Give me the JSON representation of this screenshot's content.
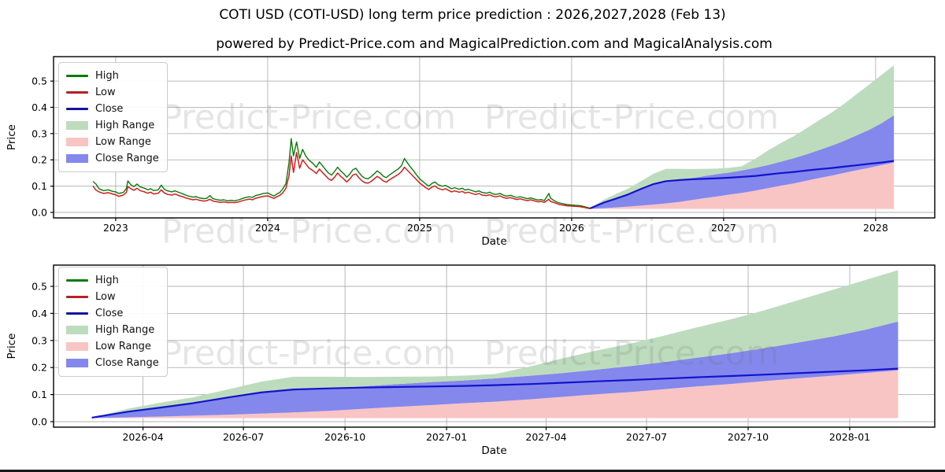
{
  "title": "COTI USD (COTI-USD) long term price prediction : 2026,2027,2028 (Feb 13)",
  "subtitle": "powered by Predict-Price.com and MagicalPrediction.com and MagicalAnalysis.com",
  "watermark_text": "Predict-Price.com",
  "axis_labels": {
    "x": "Date",
    "y": "Price"
  },
  "colors": {
    "high_line": "#0a7a0a",
    "low_line": "#cf2020",
    "close_line": "#1313cd",
    "high_fill": "#bddcbd",
    "low_fill": "#f9c4c4",
    "close_fill": "#8488ec",
    "grid": "#b0b0b0",
    "spine": "#000000",
    "watermark": "rgba(110,110,110,0.18)"
  },
  "legend": {
    "items": [
      {
        "label": "High",
        "swatch": "line",
        "color": "#0a7a0a"
      },
      {
        "label": "Low",
        "swatch": "line",
        "color": "#b42222"
      },
      {
        "label": "Close",
        "swatch": "line",
        "color": "#14149b"
      },
      {
        "label": "High Range",
        "swatch": "fill",
        "color": "#bddcbd"
      },
      {
        "label": "Low Range",
        "swatch": "fill",
        "color": "#f9c4c4"
      },
      {
        "label": "Close Range",
        "swatch": "fill",
        "color": "#8488ec"
      }
    ]
  },
  "chart_data": [
    {
      "type": "line+area",
      "panel": "top",
      "title": "COTI-USD history 2022-2026 with prediction to 2028",
      "xlabel": "Date",
      "ylabel": "Price",
      "xlim": [
        2022.591,
        2028.389
      ],
      "ylim": [
        -0.021,
        0.593
      ],
      "x_ticks": [
        {
          "v": 2023,
          "label": "2023"
        },
        {
          "v": 2024,
          "label": "2024"
        },
        {
          "v": 2025,
          "label": "2025"
        },
        {
          "v": 2026,
          "label": "2026"
        },
        {
          "v": 2027,
          "label": "2027"
        },
        {
          "v": 2028,
          "label": "2028"
        }
      ],
      "y_ticks": [
        {
          "v": 0.0,
          "label": "0.0"
        },
        {
          "v": 0.1,
          "label": "0.1"
        },
        {
          "v": 0.2,
          "label": "0.2"
        },
        {
          "v": 0.3,
          "label": "0.3"
        },
        {
          "v": 0.4,
          "label": "0.4"
        },
        {
          "v": 0.5,
          "label": "0.5"
        }
      ],
      "series": [
        "history",
        "prediction"
      ]
    },
    {
      "type": "area",
      "panel": "bottom",
      "title": "COTI-USD prediction detail 2026-02 to 2028-02",
      "xlabel": "Date",
      "ylabel": "Price",
      "xlim": [
        2026.025,
        2028.211
      ],
      "ylim": [
        -0.0203,
        0.5785
      ],
      "x_ticks": [
        {
          "v": 2026.247,
          "label": "2026-04"
        },
        {
          "v": 2026.496,
          "label": "2026-07"
        },
        {
          "v": 2026.748,
          "label": "2026-10"
        },
        {
          "v": 2027.0,
          "label": "2027-01"
        },
        {
          "v": 2027.247,
          "label": "2027-04"
        },
        {
          "v": 2027.496,
          "label": "2027-07"
        },
        {
          "v": 2027.748,
          "label": "2027-10"
        },
        {
          "v": 2028.0,
          "label": "2028-01"
        }
      ],
      "y_ticks": [
        {
          "v": 0.0,
          "label": "0.0"
        },
        {
          "v": 0.1,
          "label": "0.1"
        },
        {
          "v": 0.2,
          "label": "0.2"
        },
        {
          "v": 0.3,
          "label": "0.3"
        },
        {
          "v": 0.4,
          "label": "0.4"
        },
        {
          "v": 0.5,
          "label": "0.5"
        }
      ],
      "series": [
        "prediction"
      ]
    }
  ],
  "series": {
    "history": {
      "columns": [
        "t",
        "high",
        "low"
      ],
      "points": [
        [
          2022.85,
          0.118,
          0.1
        ],
        [
          2022.87,
          0.108,
          0.085
        ],
        [
          2022.89,
          0.09,
          0.078
        ],
        [
          2022.92,
          0.083,
          0.072
        ],
        [
          2022.95,
          0.086,
          0.075
        ],
        [
          2022.98,
          0.08,
          0.07
        ],
        [
          2023.0,
          0.078,
          0.067
        ],
        [
          2023.02,
          0.072,
          0.061
        ],
        [
          2023.05,
          0.076,
          0.066
        ],
        [
          2023.07,
          0.09,
          0.076
        ],
        [
          2023.08,
          0.12,
          0.098
        ],
        [
          2023.1,
          0.105,
          0.09
        ],
        [
          2023.12,
          0.098,
          0.084
        ],
        [
          2023.14,
          0.108,
          0.092
        ],
        [
          2023.16,
          0.097,
          0.083
        ],
        [
          2023.19,
          0.092,
          0.078
        ],
        [
          2023.21,
          0.086,
          0.073
        ],
        [
          2023.23,
          0.09,
          0.077
        ],
        [
          2023.25,
          0.083,
          0.07
        ],
        [
          2023.28,
          0.086,
          0.073
        ],
        [
          2023.3,
          0.104,
          0.086
        ],
        [
          2023.32,
          0.088,
          0.074
        ],
        [
          2023.34,
          0.082,
          0.069
        ],
        [
          2023.37,
          0.078,
          0.066
        ],
        [
          2023.39,
          0.082,
          0.07
        ],
        [
          2023.42,
          0.075,
          0.063
        ],
        [
          2023.44,
          0.071,
          0.06
        ],
        [
          2023.46,
          0.066,
          0.055
        ],
        [
          2023.48,
          0.062,
          0.052
        ],
        [
          2023.51,
          0.058,
          0.048
        ],
        [
          2023.53,
          0.06,
          0.05
        ],
        [
          2023.55,
          0.055,
          0.046
        ],
        [
          2023.58,
          0.052,
          0.043
        ],
        [
          2023.6,
          0.054,
          0.045
        ],
        [
          2023.62,
          0.064,
          0.05
        ],
        [
          2023.64,
          0.052,
          0.043
        ],
        [
          2023.67,
          0.048,
          0.04
        ],
        [
          2023.69,
          0.046,
          0.038
        ],
        [
          2023.71,
          0.048,
          0.04
        ],
        [
          2023.74,
          0.044,
          0.037
        ],
        [
          2023.76,
          0.046,
          0.038
        ],
        [
          2023.78,
          0.044,
          0.037
        ],
        [
          2023.81,
          0.048,
          0.04
        ],
        [
          2023.83,
          0.052,
          0.044
        ],
        [
          2023.85,
          0.056,
          0.047
        ],
        [
          2023.88,
          0.06,
          0.051
        ],
        [
          2023.9,
          0.057,
          0.048
        ],
        [
          2023.92,
          0.064,
          0.054
        ],
        [
          2023.95,
          0.068,
          0.058
        ],
        [
          2023.97,
          0.072,
          0.061
        ],
        [
          2024.0,
          0.074,
          0.063
        ],
        [
          2024.02,
          0.068,
          0.058
        ],
        [
          2024.04,
          0.062,
          0.053
        ],
        [
          2024.06,
          0.07,
          0.06
        ],
        [
          2024.08,
          0.076,
          0.065
        ],
        [
          2024.1,
          0.09,
          0.075
        ],
        [
          2024.12,
          0.11,
          0.092
        ],
        [
          2024.14,
          0.19,
          0.14
        ],
        [
          2024.155,
          0.281,
          0.215
        ],
        [
          2024.17,
          0.215,
          0.152
        ],
        [
          2024.19,
          0.268,
          0.228
        ],
        [
          2024.21,
          0.205,
          0.168
        ],
        [
          2024.23,
          0.24,
          0.2
        ],
        [
          2024.25,
          0.215,
          0.185
        ],
        [
          2024.27,
          0.2,
          0.17
        ],
        [
          2024.3,
          0.185,
          0.158
        ],
        [
          2024.32,
          0.172,
          0.148
        ],
        [
          2024.34,
          0.192,
          0.165
        ],
        [
          2024.36,
          0.178,
          0.152
        ],
        [
          2024.38,
          0.163,
          0.14
        ],
        [
          2024.4,
          0.15,
          0.128
        ],
        [
          2024.42,
          0.142,
          0.122
        ],
        [
          2024.44,
          0.156,
          0.134
        ],
        [
          2024.46,
          0.172,
          0.15
        ],
        [
          2024.48,
          0.158,
          0.137
        ],
        [
          2024.5,
          0.148,
          0.128
        ],
        [
          2024.52,
          0.134,
          0.116
        ],
        [
          2024.54,
          0.146,
          0.127
        ],
        [
          2024.56,
          0.162,
          0.142
        ],
        [
          2024.58,
          0.168,
          0.146
        ],
        [
          2024.6,
          0.152,
          0.132
        ],
        [
          2024.62,
          0.138,
          0.12
        ],
        [
          2024.64,
          0.13,
          0.113
        ],
        [
          2024.66,
          0.128,
          0.111
        ],
        [
          2024.68,
          0.136,
          0.118
        ],
        [
          2024.7,
          0.146,
          0.127
        ],
        [
          2024.72,
          0.158,
          0.137
        ],
        [
          2024.74,
          0.15,
          0.13
        ],
        [
          2024.76,
          0.138,
          0.12
        ],
        [
          2024.78,
          0.132,
          0.115
        ],
        [
          2024.8,
          0.142,
          0.124
        ],
        [
          2024.82,
          0.15,
          0.131
        ],
        [
          2024.84,
          0.158,
          0.138
        ],
        [
          2024.86,
          0.166,
          0.145
        ],
        [
          2024.88,
          0.178,
          0.155
        ],
        [
          2024.9,
          0.205,
          0.172
        ],
        [
          2024.92,
          0.188,
          0.16
        ],
        [
          2024.94,
          0.172,
          0.148
        ],
        [
          2024.96,
          0.158,
          0.136
        ],
        [
          2024.98,
          0.142,
          0.124
        ],
        [
          2025.0,
          0.128,
          0.112
        ],
        [
          2025.02,
          0.118,
          0.103
        ],
        [
          2025.04,
          0.108,
          0.094
        ],
        [
          2025.06,
          0.1,
          0.087
        ],
        [
          2025.08,
          0.11,
          0.096
        ],
        [
          2025.1,
          0.116,
          0.101
        ],
        [
          2025.12,
          0.106,
          0.092
        ],
        [
          2025.15,
          0.099,
          0.086
        ],
        [
          2025.17,
          0.103,
          0.09
        ],
        [
          2025.19,
          0.096,
          0.084
        ],
        [
          2025.21,
          0.09,
          0.078
        ],
        [
          2025.23,
          0.094,
          0.082
        ],
        [
          2025.26,
          0.088,
          0.077
        ],
        [
          2025.28,
          0.092,
          0.08
        ],
        [
          2025.3,
          0.085,
          0.074
        ],
        [
          2025.32,
          0.088,
          0.077
        ],
        [
          2025.35,
          0.082,
          0.071
        ],
        [
          2025.37,
          0.078,
          0.068
        ],
        [
          2025.39,
          0.082,
          0.072
        ],
        [
          2025.41,
          0.076,
          0.066
        ],
        [
          2025.44,
          0.073,
          0.064
        ],
        [
          2025.46,
          0.077,
          0.067
        ],
        [
          2025.48,
          0.071,
          0.062
        ],
        [
          2025.5,
          0.068,
          0.059
        ],
        [
          2025.53,
          0.072,
          0.063
        ],
        [
          2025.55,
          0.066,
          0.057
        ],
        [
          2025.57,
          0.062,
          0.054
        ],
        [
          2025.6,
          0.065,
          0.056
        ],
        [
          2025.62,
          0.06,
          0.052
        ],
        [
          2025.64,
          0.057,
          0.049
        ],
        [
          2025.66,
          0.06,
          0.052
        ],
        [
          2025.69,
          0.055,
          0.047
        ],
        [
          2025.71,
          0.052,
          0.045
        ],
        [
          2025.73,
          0.055,
          0.048
        ],
        [
          2025.76,
          0.05,
          0.043
        ],
        [
          2025.78,
          0.047,
          0.04
        ],
        [
          2025.8,
          0.049,
          0.042
        ],
        [
          2025.82,
          0.045,
          0.038
        ],
        [
          2025.85,
          0.072,
          0.05
        ],
        [
          2025.86,
          0.055,
          0.042
        ],
        [
          2025.88,
          0.046,
          0.038
        ],
        [
          2025.9,
          0.04,
          0.034
        ],
        [
          2025.92,
          0.036,
          0.03
        ],
        [
          2025.95,
          0.032,
          0.027
        ],
        [
          2025.97,
          0.03,
          0.025
        ],
        [
          2026.0,
          0.028,
          0.024
        ],
        [
          2026.02,
          0.027,
          0.023
        ],
        [
          2026.05,
          0.026,
          0.022
        ],
        [
          2026.07,
          0.024,
          0.02
        ],
        [
          2026.09,
          0.021,
          0.018
        ],
        [
          2026.12,
          0.016,
          0.014
        ]
      ]
    },
    "prediction": {
      "columns": [
        "t",
        "close",
        "low_range_top",
        "close_range_top",
        "high_range_top"
      ],
      "band_bottom": 0.013,
      "points": [
        [
          2026.12,
          0.015,
          0.013,
          0.015,
          0.015
        ],
        [
          2026.21,
          0.037,
          0.016,
          0.037,
          0.048
        ],
        [
          2026.29,
          0.052,
          0.019,
          0.052,
          0.07
        ],
        [
          2026.37,
          0.068,
          0.022,
          0.068,
          0.09
        ],
        [
          2026.46,
          0.09,
          0.026,
          0.09,
          0.12
        ],
        [
          2026.54,
          0.108,
          0.03,
          0.108,
          0.148
        ],
        [
          2026.62,
          0.119,
          0.034,
          0.119,
          0.166
        ],
        [
          2026.71,
          0.123,
          0.04,
          0.124,
          0.166
        ],
        [
          2026.79,
          0.126,
          0.047,
          0.13,
          0.165
        ],
        [
          2026.87,
          0.128,
          0.054,
          0.138,
          0.166
        ],
        [
          2026.96,
          0.13,
          0.061,
          0.146,
          0.167
        ],
        [
          2027.04,
          0.132,
          0.068,
          0.152,
          0.17
        ],
        [
          2027.12,
          0.135,
          0.074,
          0.16,
          0.176
        ],
        [
          2027.21,
          0.139,
          0.083,
          0.17,
          0.205
        ],
        [
          2027.29,
          0.144,
          0.092,
          0.18,
          0.235
        ],
        [
          2027.37,
          0.149,
          0.101,
          0.192,
          0.262
        ],
        [
          2027.46,
          0.154,
          0.11,
          0.206,
          0.29
        ],
        [
          2027.54,
          0.159,
          0.12,
          0.22,
          0.318
        ],
        [
          2027.62,
          0.164,
          0.13,
          0.236,
          0.348
        ],
        [
          2027.71,
          0.169,
          0.14,
          0.254,
          0.38
        ],
        [
          2027.79,
          0.174,
          0.15,
          0.272,
          0.412
        ],
        [
          2027.87,
          0.179,
          0.16,
          0.292,
          0.448
        ],
        [
          2027.96,
          0.185,
          0.17,
          0.315,
          0.488
        ],
        [
          2028.04,
          0.19,
          0.18,
          0.34,
          0.524
        ],
        [
          2028.12,
          0.196,
          0.19,
          0.37,
          0.56
        ]
      ]
    }
  }
}
